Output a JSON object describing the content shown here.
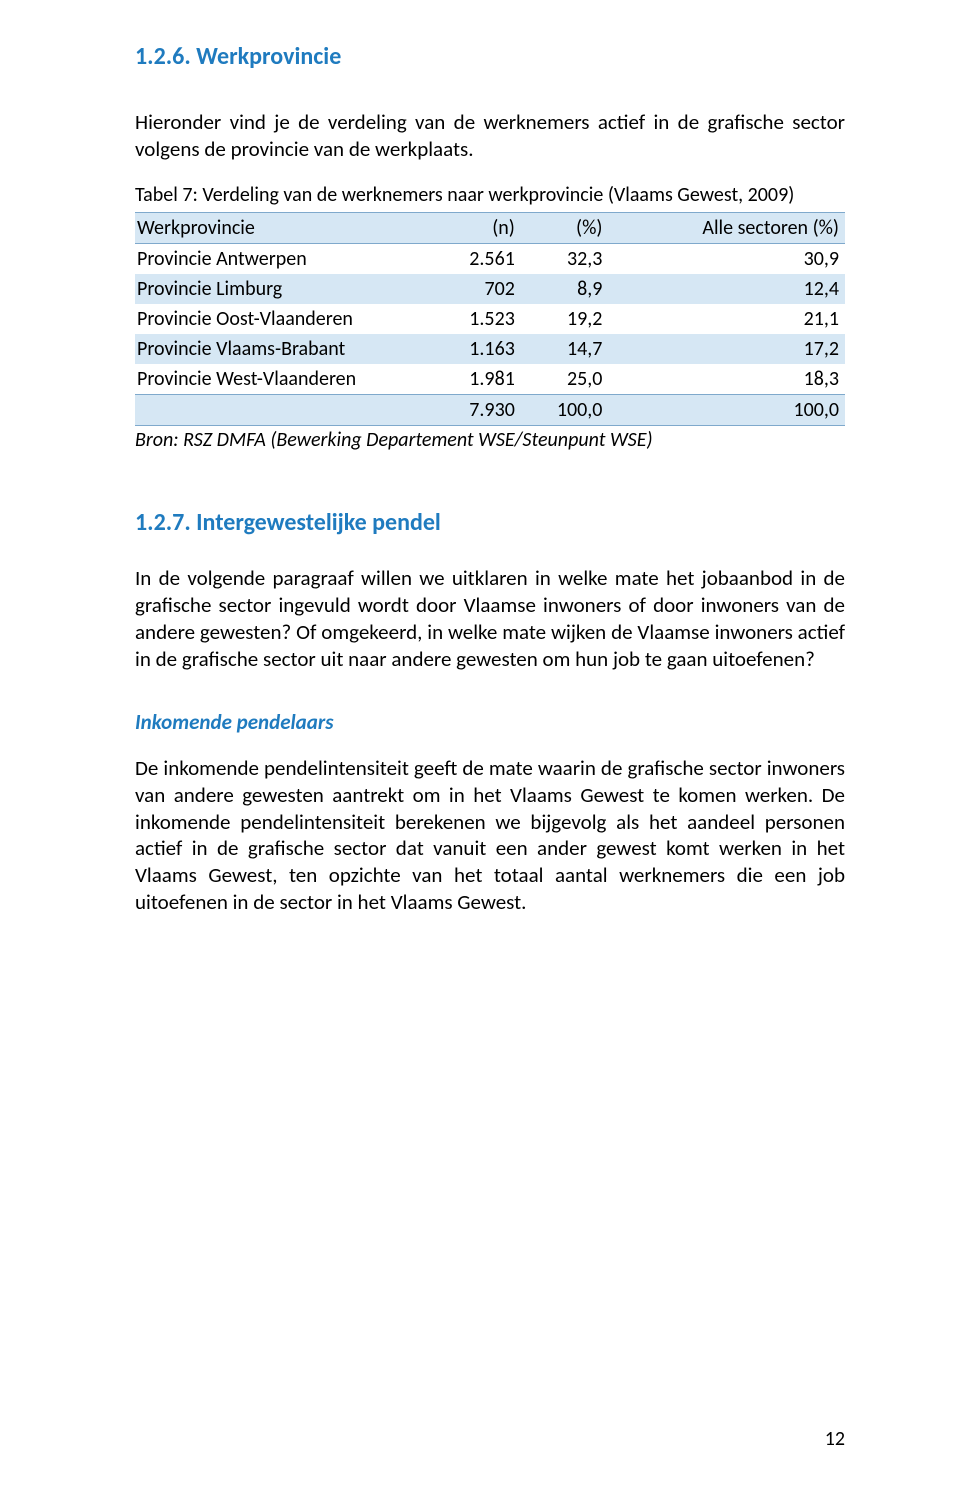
{
  "headings": {
    "h3_1": "1.2.6. Werkprovincie",
    "h3_2": "1.2.7. Intergewestelijke pendel",
    "h4_1": "Inkomende pendelaars"
  },
  "paragraphs": {
    "p1": "Hieronder vind je de verdeling van de werknemers actief in de grafische sector volgens de provincie van de werkplaats.",
    "p2": "In de volgende paragraaf willen we uitklaren in welke mate het jobaanbod in de grafische sector ingevuld wordt door Vlaamse inwoners of door inwoners van de andere gewesten? Of omgekeerd, in welke mate wijken de Vlaamse inwoners actief in de grafische sector uit naar andere gewesten om hun job te gaan uitoefenen?",
    "p3": "De inkomende pendelintensiteit geeft de mate waarin de grafische sector inwoners van andere gewesten aantrekt om in het Vlaams Gewest te komen werken. De inkomende pendelintensiteit berekenen we bijgevolg als het aandeel personen actief in de grafische sector dat vanuit een ander gewest komt werken in het Vlaams Gewest, ten opzichte van het totaal aantal werknemers die een job uitoefenen in de sector in het Vlaams Gewest."
  },
  "table": {
    "caption": "Tabel 7: Verdeling van de werknemers naar werkprovincie (Vlaams Gewest, 2009)",
    "columns": [
      "Werkprovincie",
      "(n)",
      "(%)",
      "Alle sectoren (%)"
    ],
    "rows": [
      [
        "Provincie Antwerpen",
        "2.561",
        "32,3",
        "30,9"
      ],
      [
        "Provincie Limburg",
        "702",
        "8,9",
        "12,4"
      ],
      [
        "Provincie Oost-Vlaanderen",
        "1.523",
        "19,2",
        "21,1"
      ],
      [
        "Provincie Vlaams-Brabant",
        "1.163",
        "14,7",
        "17,2"
      ],
      [
        "Provincie West-Vlaanderen",
        "1.981",
        "25,0",
        "18,3"
      ]
    ],
    "total": [
      "",
      "7.930",
      "100,0",
      "100,0"
    ],
    "source": "Bron: RSZ DMFA (Bewerking Departement WSE/Steunpunt WSE)",
    "header_bg": "#d6e7f4",
    "stripe_bg": "#d6e7f4",
    "border_color": "#7fa9cc"
  },
  "page_number": "12",
  "colors": {
    "heading": "#1f7bbf",
    "text": "#000000",
    "background": "#ffffff"
  }
}
